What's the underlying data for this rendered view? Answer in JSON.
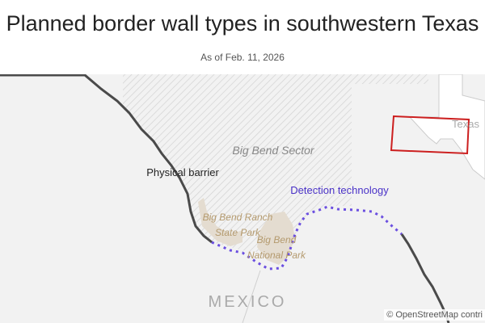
{
  "header": {
    "title": "Planned border wall types in southwestern Texas",
    "subtitle": "As of Feb. 11, 2026"
  },
  "map": {
    "labels": {
      "sector": "Big Bend Sector",
      "physical": "Physical barrier",
      "detection": "Detection technology",
      "ranch_line1": "Big Bend Ranch",
      "ranch_line2": "State Park",
      "np_line1": "Big Bend",
      "np_line2": "National Park",
      "country": "MEXICO",
      "inset_state": "Texas"
    },
    "colors": {
      "physical_barrier": "#4a4a4a",
      "detection_technology": "#6b4fe0",
      "parks": "#e4dcd0",
      "park_label": "#b49a6e",
      "inset_box": "#cc1f1f",
      "land": "#f2f2f2"
    },
    "attribution": "© OpenStreetMap contri"
  }
}
